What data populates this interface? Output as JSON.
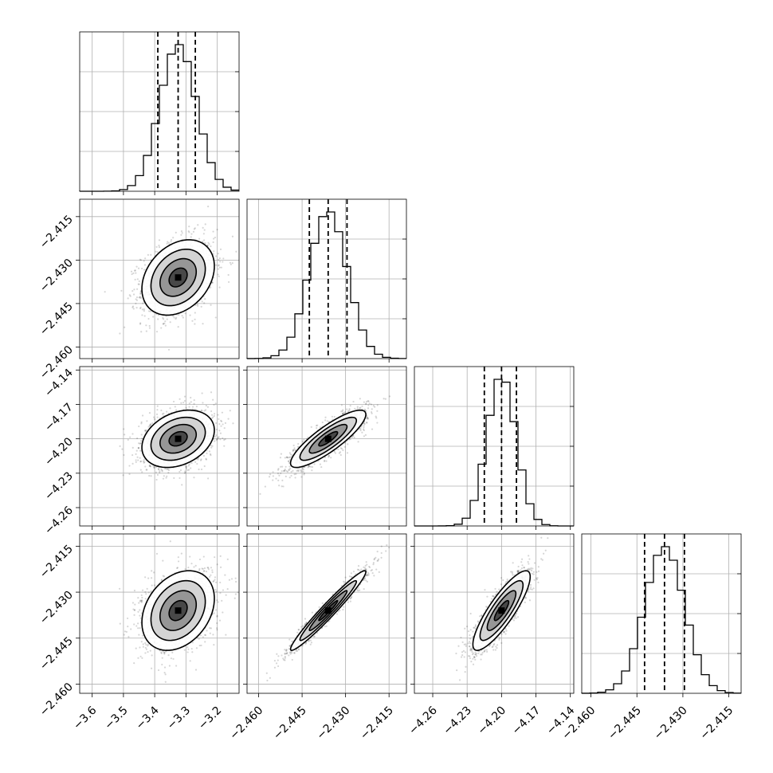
{
  "chart_data": {
    "type": "corner",
    "grid": true,
    "params": [
      {
        "center": -3.325,
        "sigma": 0.058,
        "range": [
          -3.64,
          -3.13
        ],
        "ticks": [
          -3.6,
          -3.5,
          -3.4,
          -3.3,
          -3.2
        ],
        "tick_labels": [
          "−3.6",
          "−3.5",
          "−3.4",
          "−3.3",
          "−3.2"
        ],
        "quantiles": [
          -3.39,
          -3.325,
          -3.27
        ]
      },
      {
        "center": -2.436,
        "sigma": 0.0065,
        "range": [
          -2.464,
          -2.409
        ],
        "ticks": [
          -2.46,
          -2.445,
          -2.43,
          -2.415
        ],
        "tick_labels": [
          "−2.460",
          "−2.445",
          "−2.430",
          "−2.415"
        ],
        "quantiles": [
          -2.4425,
          -2.436,
          -2.4295
        ]
      },
      {
        "center": -4.2,
        "sigma": 0.0125,
        "range": [
          -4.276,
          -4.137
        ],
        "ticks": [
          -4.26,
          -4.23,
          -4.2,
          -4.17,
          -4.14
        ],
        "tick_labels": [
          "−4.26",
          "−4.23",
          "−4.20",
          "−4.17",
          "−4.14"
        ],
        "quantiles": [
          -4.215,
          -4.2,
          -4.187
        ]
      },
      {
        "center": -2.436,
        "sigma": 0.0065,
        "range": [
          -2.463,
          -2.411
        ],
        "ticks": [
          -2.46,
          -2.445,
          -2.43,
          -2.415
        ],
        "tick_labels": [
          "−2.460",
          "−2.445",
          "−2.430",
          "−2.415"
        ],
        "quantiles": [
          -2.4425,
          -2.436,
          -2.4295
        ]
      }
    ],
    "correlations": [
      [
        1.0,
        0.3,
        0.3,
        0.3
      ],
      [
        0.3,
        1.0,
        0.85,
        0.97
      ],
      [
        0.3,
        0.85,
        1.0,
        0.85
      ],
      [
        0.3,
        0.97,
        0.85,
        1.0
      ]
    ],
    "hist_bins": 20,
    "contour_levels_sigma": [
      0.5,
      1.0,
      1.5,
      2.0
    ],
    "sample_count": 1600
  }
}
